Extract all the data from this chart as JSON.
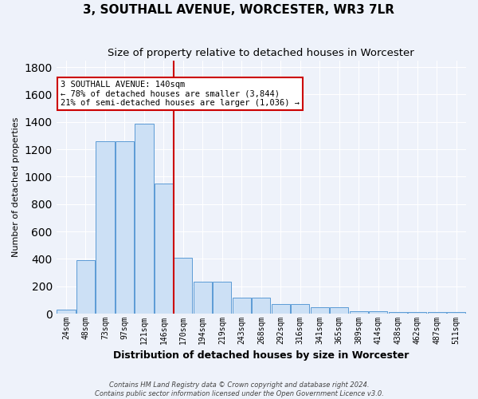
{
  "title": "3, SOUTHALL AVENUE, WORCESTER, WR3 7LR",
  "subtitle": "Size of property relative to detached houses in Worcester",
  "xlabel": "Distribution of detached houses by size in Worcester",
  "ylabel": "Number of detached properties",
  "categories": [
    "24sqm",
    "48sqm",
    "73sqm",
    "97sqm",
    "121sqm",
    "146sqm",
    "170sqm",
    "194sqm",
    "219sqm",
    "243sqm",
    "268sqm",
    "292sqm",
    "316sqm",
    "341sqm",
    "365sqm",
    "389sqm",
    "414sqm",
    "438sqm",
    "462sqm",
    "487sqm",
    "511sqm"
  ],
  "values": [
    30,
    390,
    1260,
    1260,
    1390,
    950,
    410,
    235,
    235,
    115,
    115,
    70,
    70,
    45,
    45,
    20,
    20,
    15,
    15,
    10,
    10
  ],
  "bar_color": "#cce0f5",
  "bar_edge_color": "#5b9bd5",
  "vline_x": 5.5,
  "vline_color": "#cc0000",
  "annotation_text": "3 SOUTHALL AVENUE: 140sqm\n← 78% of detached houses are smaller (3,844)\n21% of semi-detached houses are larger (1,036) →",
  "annotation_box_color": "#ffffff",
  "annotation_box_edge": "#cc0000",
  "footer": "Contains HM Land Registry data © Crown copyright and database right 2024.\nContains public sector information licensed under the Open Government Licence v3.0.",
  "ylim": [
    0,
    1850
  ],
  "background_color": "#eef2fa",
  "grid_color": "#ffffff",
  "title_fontsize": 11,
  "subtitle_fontsize": 9.5,
  "ylabel_fontsize": 8,
  "xlabel_fontsize": 9,
  "tick_fontsize": 7,
  "footer_fontsize": 6
}
